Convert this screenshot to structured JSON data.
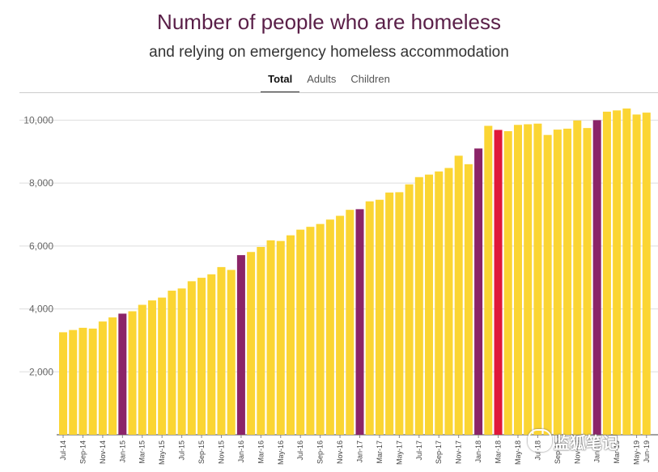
{
  "header": {
    "title": "Number of people who are homeless",
    "subtitle": "and relying on emergency homeless accommodation"
  },
  "tabs": [
    {
      "label": "Total",
      "active": true
    },
    {
      "label": "Adults",
      "active": false
    },
    {
      "label": "Children",
      "active": false
    }
  ],
  "watermark": {
    "text": "监狐笔记"
  },
  "colors": {
    "normal": "#fbd533",
    "january": "#8b2468",
    "highlight": "#e0183a",
    "grid": "#dddddd",
    "axis_text": "#666666"
  },
  "chart_data": {
    "type": "bar",
    "title": "Number of people who are homeless",
    "subtitle": "and relying on emergency homeless accommodation",
    "xlabel": "",
    "ylabel": "",
    "ylim": [
      0,
      10500
    ],
    "yticks": [
      2000,
      4000,
      6000,
      8000,
      10000
    ],
    "ytick_labels": [
      "2,000",
      "4,000",
      "6,000",
      "8,000",
      "10,000"
    ],
    "grid": true,
    "categories": [
      "Jul-14",
      "Aug-14",
      "Sep-14",
      "Oct-14",
      "Nov-14",
      "Dec-14",
      "Jan-15",
      "Feb-15",
      "Mar-15",
      "Apr-15",
      "May-15",
      "Jun-15",
      "Jul-15",
      "Aug-15",
      "Sep-15",
      "Oct-15",
      "Nov-15",
      "Dec-15",
      "Jan-16",
      "Feb-16",
      "Mar-16",
      "Apr-16",
      "May-16",
      "Jun-16",
      "Jul-16",
      "Aug-16",
      "Sep-16",
      "Oct-16",
      "Nov-16",
      "Dec-16",
      "Jan-17",
      "Feb-17",
      "Mar-17",
      "Apr-17",
      "May-17",
      "Jun-17",
      "Jul-17",
      "Aug-17",
      "Sep-17",
      "Oct-17",
      "Nov-17",
      "Dec-17",
      "Jan-18",
      "Feb-18",
      "Mar-18",
      "Apr-18",
      "May-18",
      "Jun-18",
      "Jul-18",
      "Aug-18",
      "Sep-18",
      "Oct-18",
      "Nov-18",
      "Dec-18",
      "Jan-19",
      "Feb-19",
      "Mar-19",
      "Apr-19",
      "May-19",
      "Jun-19"
    ],
    "values": [
      3258,
      3330,
      3400,
      3375,
      3600,
      3730,
      3850,
      3925,
      4130,
      4270,
      4360,
      4580,
      4650,
      4880,
      4990,
      5100,
      5330,
      5240,
      5710,
      5810,
      5970,
      6180,
      6160,
      6340,
      6520,
      6610,
      6700,
      6840,
      6960,
      7150,
      7170,
      7420,
      7470,
      7700,
      7710,
      7960,
      8190,
      8270,
      8370,
      8480,
      8870,
      8600,
      9100,
      9820,
      9690,
      9650,
      9850,
      9870,
      9890,
      9530,
      9700,
      9730,
      9990,
      9750,
      10000,
      10270,
      10310,
      10370,
      10180,
      10240
    ],
    "bar_kind": [
      "normal",
      "normal",
      "normal",
      "normal",
      "normal",
      "normal",
      "january",
      "normal",
      "normal",
      "normal",
      "normal",
      "normal",
      "normal",
      "normal",
      "normal",
      "normal",
      "normal",
      "normal",
      "january",
      "normal",
      "normal",
      "normal",
      "normal",
      "normal",
      "normal",
      "normal",
      "normal",
      "normal",
      "normal",
      "normal",
      "january",
      "normal",
      "normal",
      "normal",
      "normal",
      "normal",
      "normal",
      "normal",
      "normal",
      "normal",
      "normal",
      "normal",
      "january",
      "normal",
      "highlight",
      "normal",
      "normal",
      "normal",
      "normal",
      "normal",
      "normal",
      "normal",
      "normal",
      "normal",
      "january",
      "normal",
      "normal",
      "normal",
      "normal",
      "normal"
    ],
    "xtick_labels": [
      "Jul-14",
      "",
      "Sep-14",
      "",
      "Nov-14",
      "",
      "Jan-15",
      "",
      "Mar-15",
      "",
      "May-15",
      "",
      "Jul-15",
      "",
      "Sep-15",
      "",
      "Nov-15",
      "",
      "Jan-16",
      "",
      "Mar-16",
      "",
      "May-16",
      "",
      "Jul-16",
      "",
      "Sep-16",
      "",
      "Nov-16",
      "",
      "Jan-17",
      "",
      "Mar-17",
      "",
      "May-17",
      "",
      "Jul-17",
      "",
      "Sep-17",
      "",
      "Nov-17",
      "",
      "Jan-18",
      "",
      "Mar-18",
      "",
      "May-18",
      "",
      "Jul-18",
      "",
      "Sep-18",
      "",
      "Nov-18",
      "",
      "Jan-19",
      "",
      "Mar-19",
      "",
      "May-19",
      "Jun-19"
    ]
  }
}
